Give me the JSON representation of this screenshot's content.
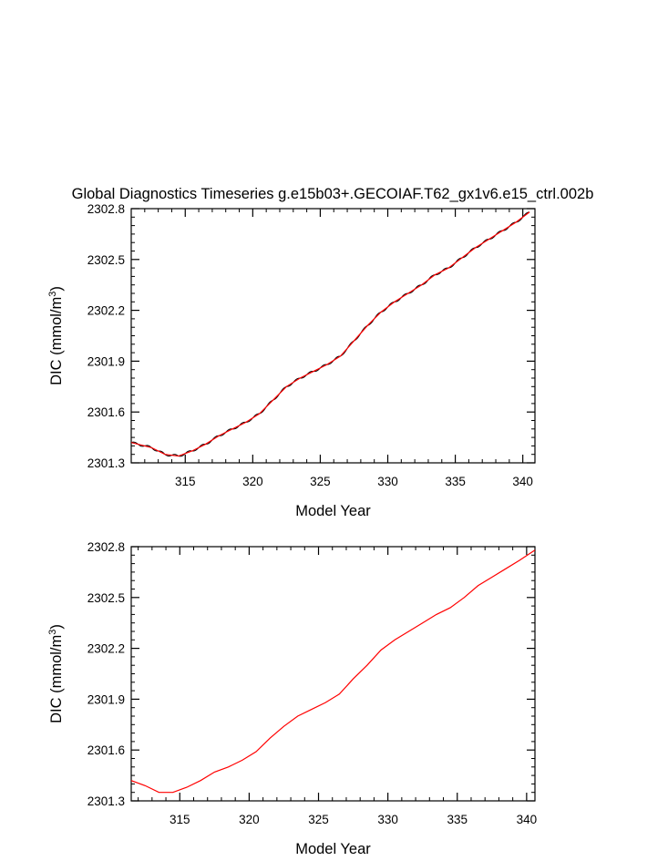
{
  "title": "Global Diagnostics Timeseries g.e15b03+.GECOIAF.T62_gx1v6.e15_ctrl.002b",
  "colors": {
    "annual": "#ff0000",
    "monthly": "#000000",
    "axes": "#000000"
  },
  "chart_data": [
    {
      "type": "line",
      "title": "Global Diagnostics Timeseries g.e15b03+.GECOIAF.T62_gx1v6.e15_ctrl.002b",
      "xlabel": "Model Year",
      "ylabel": "DIC (mmol/m",
      "ylabel_sup": "3",
      "ylabel_end": ")",
      "xlim": [
        311.0,
        340.9
      ],
      "ylim": [
        2301.3,
        2302.8
      ],
      "xticks": [
        315,
        320,
        325,
        330,
        335,
        340
      ],
      "xtick_labels": [
        "315",
        "320",
        "325",
        "330",
        "335",
        "340"
      ],
      "yticks": [
        2301.3,
        2301.6,
        2301.9,
        2302.2,
        2302.5,
        2302.8
      ],
      "ytick_labels": [
        "2301.3",
        "2301.6",
        "2301.9",
        "2302.2",
        "2302.5",
        "2302.8"
      ],
      "series": [
        {
          "style": "monthly",
          "color": "#000000",
          "annual_cycle_amplitude": 0.007,
          "x": [
            311.0,
            312.5,
            313.5,
            314.5,
            315.5,
            316.5,
            317.5,
            318.5,
            319.5,
            320.5,
            321.5,
            322.5,
            323.5,
            324.5,
            325.5,
            326.5,
            327.5,
            328.5,
            329.5,
            330.5,
            331.5,
            332.5,
            333.5,
            334.5,
            335.5,
            336.5,
            337.5,
            338.5,
            339.5,
            340.5
          ],
          "y": [
            2301.42,
            2301.39,
            2301.35,
            2301.34,
            2301.37,
            2301.41,
            2301.46,
            2301.5,
            2301.54,
            2301.59,
            2301.67,
            2301.75,
            2301.8,
            2301.84,
            2301.88,
            2301.93,
            2302.02,
            2302.11,
            2302.19,
            2302.25,
            2302.3,
            2302.35,
            2302.41,
            2302.45,
            2302.51,
            2302.57,
            2302.62,
            2302.67,
            2302.72,
            2302.78
          ]
        },
        {
          "style": "annual",
          "color": "#ff0000",
          "x": [
            311.0,
            312.5,
            313.5,
            314.5,
            315.5,
            316.5,
            317.5,
            318.5,
            319.5,
            320.5,
            321.5,
            322.5,
            323.5,
            324.5,
            325.5,
            326.5,
            327.5,
            328.5,
            329.5,
            330.5,
            331.5,
            332.5,
            333.5,
            334.5,
            335.5,
            336.5,
            337.5,
            338.5,
            339.5,
            340.5
          ],
          "y": [
            2301.42,
            2301.39,
            2301.35,
            2301.34,
            2301.37,
            2301.41,
            2301.46,
            2301.5,
            2301.54,
            2301.59,
            2301.67,
            2301.75,
            2301.8,
            2301.84,
            2301.88,
            2301.93,
            2302.02,
            2302.11,
            2302.19,
            2302.25,
            2302.3,
            2302.35,
            2302.41,
            2302.45,
            2302.51,
            2302.57,
            2302.62,
            2302.67,
            2302.72,
            2302.78
          ]
        }
      ]
    },
    {
      "type": "line",
      "xlabel": "Model Year",
      "ylabel": "DIC (mmol/m",
      "ylabel_sup": "3",
      "ylabel_end": ")",
      "xlim": [
        311.5,
        340.6
      ],
      "ylim": [
        2301.3,
        2302.8
      ],
      "xticks": [
        315,
        320,
        325,
        330,
        335,
        340
      ],
      "xtick_labels": [
        "315",
        "320",
        "325",
        "330",
        "335",
        "340"
      ],
      "yticks": [
        2301.3,
        2301.6,
        2301.9,
        2302.2,
        2302.5,
        2302.8
      ],
      "ytick_labels": [
        "2301.3",
        "2301.6",
        "2301.9",
        "2302.2",
        "2302.5",
        "2302.8"
      ],
      "series": [
        {
          "style": "annual",
          "color": "#ff0000",
          "x": [
            311.5,
            312.5,
            313.5,
            314.5,
            315.5,
            316.5,
            317.5,
            318.5,
            319.5,
            320.5,
            321.5,
            322.5,
            323.5,
            324.5,
            325.5,
            326.5,
            327.5,
            328.5,
            329.5,
            330.5,
            331.5,
            332.5,
            333.5,
            334.5,
            335.5,
            336.5,
            337.5,
            338.5,
            339.5,
            340.6
          ],
          "y": [
            2301.42,
            2301.39,
            2301.35,
            2301.35,
            2301.38,
            2301.42,
            2301.47,
            2301.5,
            2301.54,
            2301.59,
            2301.67,
            2301.74,
            2301.8,
            2301.84,
            2301.88,
            2301.93,
            2302.02,
            2302.1,
            2302.19,
            2302.25,
            2302.3,
            2302.35,
            2302.4,
            2302.44,
            2302.5,
            2302.57,
            2302.62,
            2302.67,
            2302.72,
            2302.78
          ]
        }
      ]
    }
  ]
}
